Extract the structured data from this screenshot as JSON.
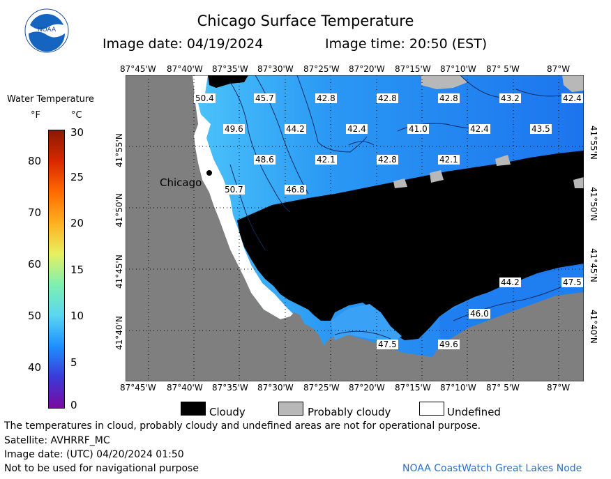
{
  "header": {
    "title": "Chicago Surface Temperature",
    "image_date": "Image date: 04/19/2024",
    "image_time": "Image time: 20:50 (EST)"
  },
  "legend": {
    "title": "Water Temperature",
    "unit_f": "°F",
    "unit_c": "°C",
    "f_ticks": [
      "80",
      "70",
      "60",
      "50",
      "40"
    ],
    "c_ticks": [
      "30",
      "25",
      "20",
      "15",
      "10",
      "5",
      "0"
    ],
    "colorbar_colors": [
      "#7a0aa0",
      "#3a3ad8",
      "#1e90ff",
      "#5ad6f0",
      "#7ef0b0",
      "#e8f060",
      "#ffb020",
      "#ff6a00",
      "#d82800",
      "#8a1a00"
    ]
  },
  "map": {
    "lon_labels": [
      "87°45'W",
      "87°40'W",
      "87°35'W",
      "87°30'W",
      "87°25'W",
      "87°20'W",
      "87°15'W",
      "87°10'W",
      "87° 5'W",
      "87°W"
    ],
    "lat_labels": [
      "41°55'N",
      "41°50'N",
      "41°45'N",
      "41°40'N"
    ],
    "city_label": "Chicago",
    "temp_labels": [
      "50.4",
      "45.7",
      "42.8",
      "42.8",
      "42.8",
      "43.2",
      "42.4",
      "49.6",
      "44.2",
      "42.4",
      "41.0",
      "42.4",
      "43.5",
      "48.6",
      "42.1",
      "42.8",
      "42.1",
      "50.7",
      "46.8",
      "44.2",
      "47.5",
      "46.0",
      "47.5",
      "49.6"
    ],
    "colors": {
      "land": "#7f7f7f",
      "cloud": "#000000",
      "probably_cloudy": "#b8b8b8",
      "water_deep": "#1c78f0",
      "water_light": "#3aa8f8"
    }
  },
  "key": {
    "cloudy": "Cloudy",
    "probably_cloudy": "Probably cloudy",
    "undefined": "Undefined"
  },
  "footer": {
    "note": "The temperatures in cloud, probably cloudy and undefined areas are not for operational purpose.",
    "satellite": "Satellite: AVHRRF_MC",
    "utc_date": "Image date: (UTC) 04/20/2024  01:50",
    "nav_warning": "Not to be used for navigational purpose",
    "node": "NOAA CoastWatch Great Lakes Node"
  }
}
